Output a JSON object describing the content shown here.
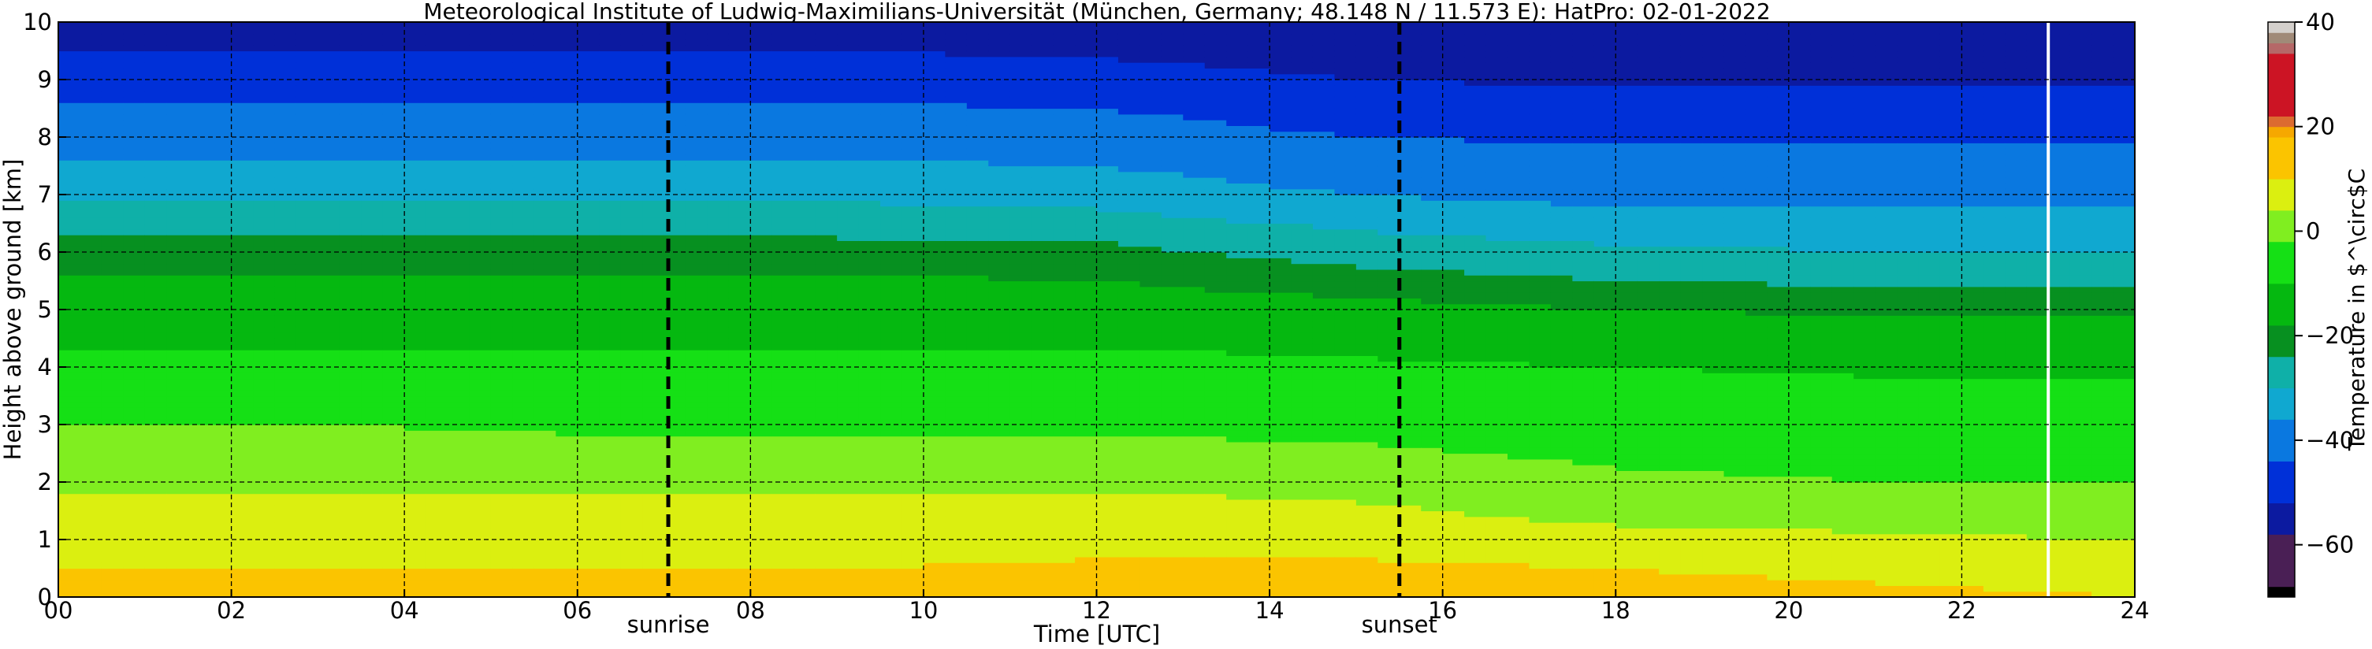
{
  "chart_data": {
    "type": "heatmap",
    "title": "Meteorological Institute of Ludwig-Maximilians-Universität (München, Germany; 48.148 N / 11.573 E):    HatPro: 02-01-2022",
    "xlabel": "Time [UTC]",
    "ylabel": "Height above ground [km]",
    "xlim": [
      0,
      24
    ],
    "ylim": [
      0,
      10
    ],
    "x_ticks": [
      0,
      2,
      4,
      6,
      8,
      10,
      12,
      14,
      16,
      18,
      20,
      22,
      24
    ],
    "x_tick_labels": [
      "00",
      "02",
      "04",
      "06",
      "08",
      "10",
      "12",
      "14",
      "16",
      "18",
      "20",
      "22",
      "24"
    ],
    "y_ticks": [
      0,
      1,
      2,
      3,
      4,
      5,
      6,
      7,
      8,
      9,
      10
    ],
    "y_tick_labels": [
      "0",
      "1",
      "2",
      "3",
      "4",
      "5",
      "6",
      "7",
      "8",
      "9",
      "10"
    ],
    "grid": true,
    "events": [
      {
        "label": "sunrise",
        "time": 7.05
      },
      {
        "label": "sunset",
        "time": 15.5
      }
    ],
    "gap_marker_time": 23.0,
    "colorbar": {
      "label": "Temperature in $^\\circ$C",
      "range": [
        -70,
        40
      ],
      "ticks": [
        -60,
        -40,
        -20,
        0,
        20,
        40
      ],
      "tick_labels": [
        "−60",
        "−40",
        "−20",
        "0",
        "20",
        "40"
      ],
      "bands": [
        {
          "from": -70,
          "to": -68,
          "color": "#000000"
        },
        {
          "from": -68,
          "to": -58,
          "color": "#4a1f55"
        },
        {
          "from": -58,
          "to": -52,
          "color": "#0c1aa0"
        },
        {
          "from": -52,
          "to": -44,
          "color": "#0030d8"
        },
        {
          "from": -44,
          "to": -36,
          "color": "#0a78e0"
        },
        {
          "from": -36,
          "to": -30,
          "color": "#10a8d0"
        },
        {
          "from": -30,
          "to": -24,
          "color": "#0fb0a8"
        },
        {
          "from": -24,
          "to": -18,
          "color": "#079020"
        },
        {
          "from": -18,
          "to": -10,
          "color": "#05b810"
        },
        {
          "from": -10,
          "to": -2,
          "color": "#15e015"
        },
        {
          "from": -2,
          "to": 4,
          "color": "#80ee20"
        },
        {
          "from": 4,
          "to": 10,
          "color": "#dbef10"
        },
        {
          "from": 10,
          "to": 18,
          "color": "#fbc400"
        },
        {
          "from": 18,
          "to": 20,
          "color": "#f6a800"
        },
        {
          "from": 20,
          "to": 22,
          "color": "#dc6b30"
        },
        {
          "from": 22,
          "to": 34,
          "color": "#cc1424"
        },
        {
          "from": 34,
          "to": 36,
          "color": "#b56868"
        },
        {
          "from": 36,
          "to": 38,
          "color": "#a08a78"
        },
        {
          "from": 38,
          "to": 40,
          "color": "#d4d0cc"
        }
      ]
    },
    "temperature_profile": {
      "heights_km": [
        0,
        0.5,
        1.0,
        1.5,
        2.0,
        2.5,
        3.0,
        3.5,
        4.0,
        4.5,
        5.0,
        5.5,
        6.0,
        6.5,
        7.0,
        7.5,
        8.0,
        8.5,
        9.0,
        9.5,
        10.0
      ],
      "times_h": [
        0,
        3,
        6,
        9,
        12,
        15,
        18,
        21,
        24
      ],
      "values_c": [
        [
          12,
          12,
          12,
          12,
          13,
          13,
          12,
          11,
          10
        ],
        [
          10,
          10,
          10,
          10,
          11,
          11,
          10,
          9,
          8
        ],
        [
          7,
          7,
          7,
          7,
          8,
          8,
          6,
          5,
          4
        ],
        [
          5,
          5,
          5,
          5,
          6,
          5,
          2,
          1,
          0
        ],
        [
          3,
          3,
          3,
          3,
          3,
          2,
          -1,
          -2,
          -2
        ],
        [
          1,
          1,
          0,
          0,
          0,
          -1,
          -3,
          -4,
          -4
        ],
        [
          -2,
          -2,
          -3,
          -3,
          -3,
          -4,
          -5,
          -6,
          -6
        ],
        [
          -5,
          -5,
          -5,
          -5,
          -5,
          -6,
          -7,
          -8,
          -8
        ],
        [
          -8,
          -8,
          -8,
          -8,
          -8,
          -9,
          -10,
          -11,
          -11
        ],
        [
          -11,
          -11,
          -11,
          -11,
          -11,
          -12,
          -13,
          -14,
          -14
        ],
        [
          -14,
          -14,
          -14,
          -14,
          -14,
          -16,
          -18,
          -19,
          -19
        ],
        [
          -17,
          -17,
          -17,
          -17,
          -18,
          -21,
          -24,
          -25,
          -25
        ],
        [
          -21,
          -21,
          -21,
          -21,
          -22,
          -27,
          -29,
          -30,
          -30
        ],
        [
          -27,
          -27,
          -27,
          -27,
          -28,
          -31,
          -33,
          -33,
          -33
        ],
        [
          -31,
          -31,
          -31,
          -31,
          -32,
          -36,
          -38,
          -38,
          -38
        ],
        [
          -35,
          -35,
          -35,
          -35,
          -36,
          -40,
          -41,
          -41,
          -41
        ],
        [
          -39,
          -39,
          -39,
          -39,
          -40,
          -44,
          -45,
          -45,
          -45
        ],
        [
          -43,
          -43,
          -43,
          -43,
          -44,
          -48,
          -49,
          -49,
          -49
        ],
        [
          -48,
          -48,
          -48,
          -48,
          -49,
          -52,
          -53,
          -53,
          -53
        ],
        [
          -52,
          -52,
          -52,
          -52,
          -53,
          -55,
          -56,
          -56,
          -56
        ],
        [
          -54,
          -54,
          -54,
          -54,
          -55,
          -57,
          -58,
          -58,
          -58
        ]
      ]
    }
  }
}
